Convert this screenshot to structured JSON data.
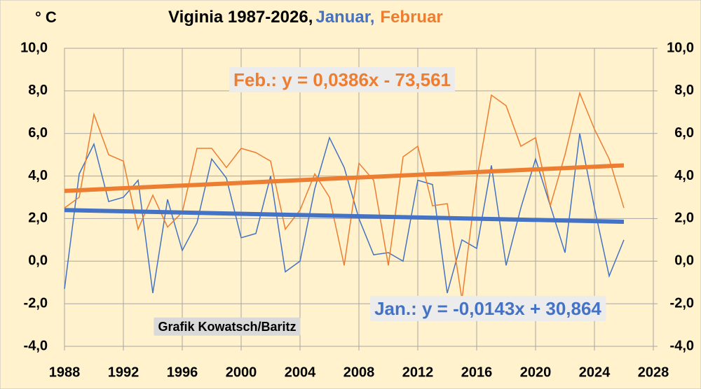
{
  "chart_data": {
    "type": "line",
    "title": "Viginia 1987-2026,",
    "title_parts": [
      {
        "text": "Januar,",
        "color": "#4472c4"
      },
      {
        "text": "Februar",
        "color": "#ed7d31"
      }
    ],
    "y_label": "° C",
    "watermark": "Grafik Kowatsch/Baritz",
    "x": [
      1988,
      1989,
      1990,
      1991,
      1992,
      1993,
      1994,
      1995,
      1996,
      1997,
      1998,
      1999,
      2000,
      2001,
      2002,
      2003,
      2004,
      2005,
      2006,
      2007,
      2008,
      2009,
      2010,
      2011,
      2012,
      2013,
      2014,
      2015,
      2016,
      2017,
      2018,
      2019,
      2020,
      2021,
      2022,
      2023,
      2024,
      2025,
      2026
    ],
    "series": [
      {
        "name": "Januar",
        "color": "#4472c4",
        "values": [
          -1.3,
          4.1,
          5.5,
          2.8,
          3.0,
          3.8,
          -1.5,
          2.9,
          0.5,
          1.8,
          4.8,
          3.9,
          1.1,
          1.3,
          4.0,
          -0.5,
          0.0,
          3.4,
          5.8,
          4.4,
          2.0,
          0.3,
          0.4,
          0.0,
          3.8,
          3.6,
          -1.5,
          1.0,
          0.6,
          4.5,
          -0.2,
          2.5,
          4.8,
          2.6,
          0.4,
          6.0,
          2.5,
          -0.7,
          1.0
        ]
      },
      {
        "name": "Februar",
        "color": "#ed7d31",
        "values": [
          2.5,
          3.0,
          6.9,
          5.0,
          4.7,
          1.5,
          3.1,
          1.6,
          2.3,
          5.3,
          5.3,
          4.4,
          5.3,
          5.1,
          4.7,
          1.5,
          2.4,
          4.1,
          3.0,
          -0.2,
          4.6,
          3.8,
          -0.2,
          4.9,
          5.4,
          2.6,
          2.7,
          -1.8,
          3.8,
          7.8,
          7.3,
          5.4,
          5.8,
          2.6,
          5.0,
          7.9,
          6.2,
          4.8,
          2.5
        ]
      }
    ],
    "trends": [
      {
        "label": "Feb.: y = 0,0386x - 73,561",
        "color": "#ed7d31",
        "x": [
          1988,
          2026
        ],
        "values": [
          3.3,
          4.5
        ]
      },
      {
        "label": "Jan.: y = -0,0143x + 30,864",
        "color": "#4472c4",
        "x": [
          1988,
          2026
        ],
        "values": [
          2.4,
          1.85
        ]
      }
    ],
    "xlim": [
      1988,
      2028
    ],
    "xticks": [
      1988,
      1992,
      1996,
      2000,
      2004,
      2008,
      2012,
      2016,
      2020,
      2024,
      2028
    ],
    "ylim": [
      -4,
      10
    ],
    "yticks": [
      {
        "value": -4,
        "label": "-4,0"
      },
      {
        "value": -2,
        "label": "-2,0"
      },
      {
        "value": 0,
        "label": "0,0"
      },
      {
        "value": 2,
        "label": "2,0"
      },
      {
        "value": 4,
        "label": "4,0"
      },
      {
        "value": 6,
        "label": "6,0"
      },
      {
        "value": 8,
        "label": "8,0"
      },
      {
        "value": 10,
        "label": "10,0"
      }
    ],
    "y2lim": [
      -4,
      10
    ],
    "y2ticks": [
      {
        "value": -4,
        "label": "-4,0"
      },
      {
        "value": -2,
        "label": "-2,0"
      },
      {
        "value": 0,
        "label": "0,0"
      },
      {
        "value": 2,
        "label": "2,0"
      },
      {
        "value": 4,
        "label": "4,0"
      },
      {
        "value": 6,
        "label": "6,0"
      },
      {
        "value": 8,
        "label": "8,0"
      },
      {
        "value": 10,
        "label": "10,0"
      }
    ],
    "grid": true
  }
}
